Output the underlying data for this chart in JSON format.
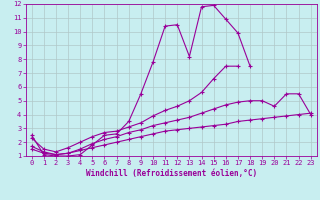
{
  "xlabel": "Windchill (Refroidissement éolien,°C)",
  "bg_color": "#c8eef0",
  "line_color": "#990099",
  "grid_color": "#b0c8c8",
  "xlim": [
    -0.5,
    23.5
  ],
  "ylim": [
    1,
    12
  ],
  "xticks": [
    0,
    1,
    2,
    3,
    4,
    5,
    6,
    7,
    8,
    9,
    10,
    11,
    12,
    13,
    14,
    15,
    16,
    17,
    18,
    19,
    20,
    21,
    22,
    23
  ],
  "yticks": [
    1,
    2,
    3,
    4,
    5,
    6,
    7,
    8,
    9,
    10,
    11,
    12
  ],
  "series": [
    {
      "x": [
        0,
        1,
        2,
        3,
        4,
        5,
        6,
        7,
        8,
        9,
        10,
        11,
        12,
        13,
        14,
        15,
        16,
        17,
        18
      ],
      "y": [
        2.5,
        1.1,
        1.0,
        1.0,
        1.1,
        1.8,
        2.5,
        2.6,
        3.5,
        5.5,
        7.8,
        10.4,
        10.5,
        8.2,
        11.8,
        11.9,
        10.9,
        9.9,
        7.5
      ]
    },
    {
      "x": [
        0,
        1,
        2,
        3,
        4,
        5,
        6,
        7,
        8,
        9,
        10,
        11,
        12,
        13,
        14,
        15,
        16,
        17,
        18,
        19,
        20,
        21,
        22,
        23
      ],
      "y": [
        1.5,
        1.2,
        1.1,
        1.2,
        1.4,
        1.6,
        1.8,
        2.0,
        2.2,
        2.4,
        2.6,
        2.8,
        2.9,
        3.0,
        3.1,
        3.2,
        3.3,
        3.5,
        3.6,
        3.7,
        3.8,
        3.9,
        4.0,
        4.1
      ]
    },
    {
      "x": [
        0,
        1,
        2,
        3,
        4,
        5,
        6,
        7,
        8,
        9,
        10,
        11,
        12,
        13,
        14,
        15,
        16,
        17,
        18,
        19,
        20,
        21,
        22,
        23
      ],
      "y": [
        1.7,
        1.3,
        1.1,
        1.2,
        1.5,
        1.9,
        2.2,
        2.4,
        2.7,
        2.9,
        3.2,
        3.4,
        3.6,
        3.8,
        4.1,
        4.4,
        4.7,
        4.9,
        5.0,
        5.0,
        4.6,
        5.5,
        5.5,
        4.0
      ]
    },
    {
      "x": [
        0,
        1,
        2,
        3,
        4,
        5,
        6,
        7,
        8,
        9,
        10,
        11,
        12,
        13,
        14,
        15,
        16,
        17
      ],
      "y": [
        2.3,
        1.5,
        1.3,
        1.6,
        2.0,
        2.4,
        2.7,
        2.8,
        3.1,
        3.4,
        3.9,
        4.3,
        4.6,
        5.0,
        5.6,
        6.6,
        7.5,
        7.5
      ]
    }
  ]
}
